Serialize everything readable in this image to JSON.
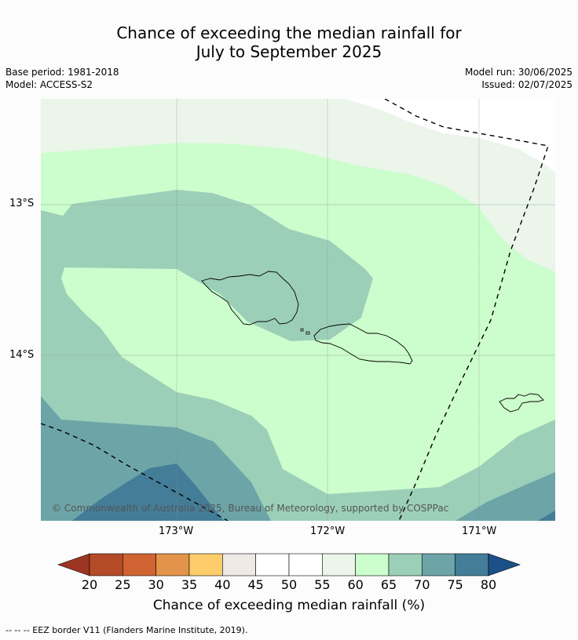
{
  "title_line1": "Chance of exceeding the median rainfall for",
  "title_line2": "July to September 2025",
  "meta": {
    "base_period": "Base period: 1981-2018",
    "model": "Model: ACCESS-S2",
    "model_run": "Model run: 30/06/2025",
    "issued": "Issued: 02/07/2025"
  },
  "axes": {
    "lat_ticks": [
      "13°S",
      "14°S"
    ],
    "lon_ticks": [
      "173°W",
      "172°W",
      "171°W"
    ]
  },
  "copyright": "© Commonwealth of Australia 2025, Bureau of Meteorology, supported by COSPPac",
  "colorbar": {
    "label": "Chance of exceeding median rainfall (%)",
    "ticks": [
      "20",
      "25",
      "30",
      "35",
      "40",
      "45",
      "50",
      "55",
      "60",
      "65",
      "70",
      "75",
      "80"
    ],
    "colors": [
      "#b44a27",
      "#cf6432",
      "#e3944a",
      "#fdcd6b",
      "#efe9e6",
      "#ffffff",
      "#ffffff",
      "#ebf5ea",
      "#ccfdcc",
      "#9ccfb8",
      "#6da4a7",
      "#437d98"
    ],
    "under_color": "#9c3521",
    "over_color": "#1c5088"
  },
  "footer": "--  --  -- EEZ border V11 (Flanders Marine Institute, 2019)."
}
